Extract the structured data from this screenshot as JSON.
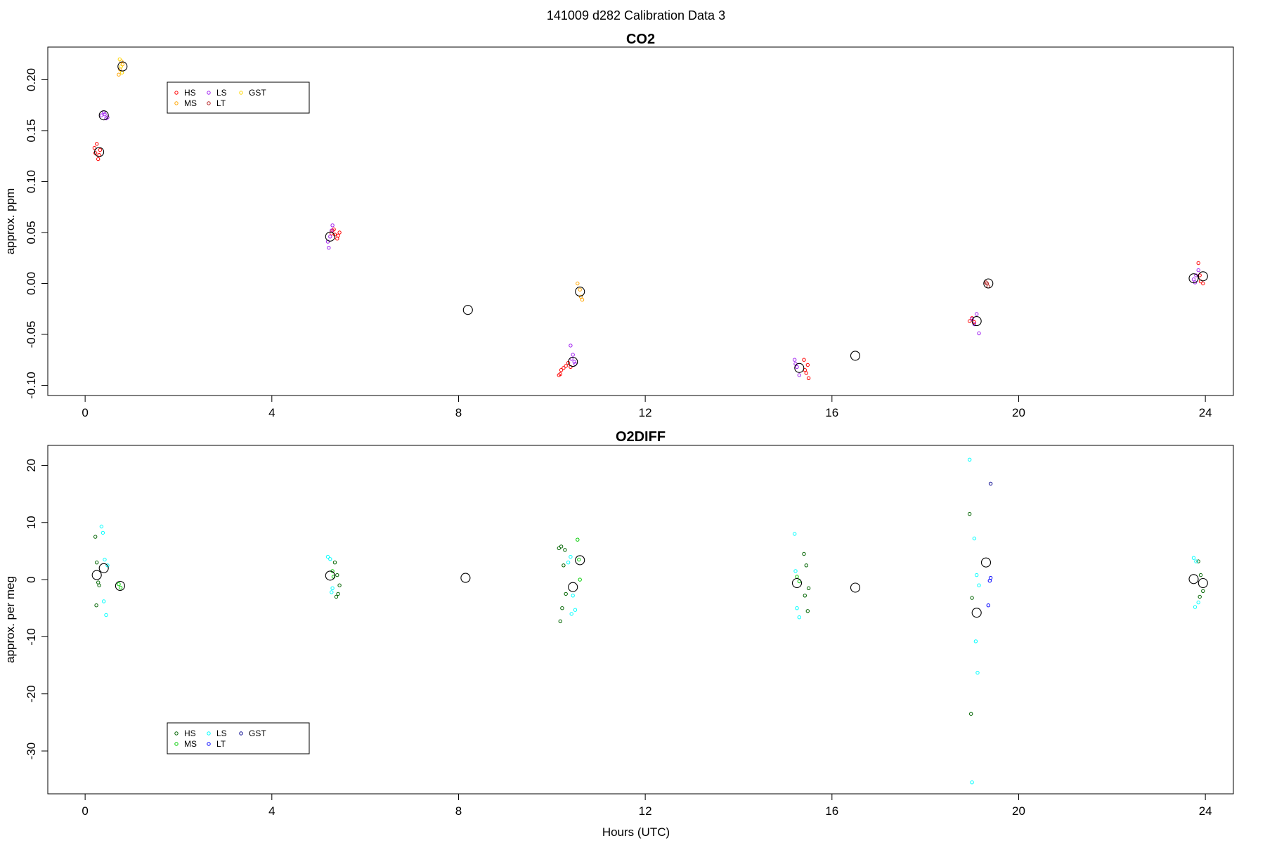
{
  "figure": {
    "title": "141009   d282   Calibration Data 3",
    "xlabel": "Hours (UTC)"
  },
  "chart_data": [
    {
      "type": "scatter",
      "title": "CO2",
      "xlabel": "",
      "ylabel": "approx. ppm",
      "xlim": [
        -0.8,
        24.6
      ],
      "ylim": [
        -0.11,
        0.232
      ],
      "xticks": [
        0,
        4,
        8,
        12,
        16,
        20,
        24
      ],
      "yticks": [
        -0.1,
        -0.05,
        0.0,
        0.05,
        0.1,
        0.15,
        0.2
      ],
      "ytick_labels": [
        "-0.10",
        "-0.05",
        "0.00",
        "0.05",
        "0.10",
        "0.15",
        "0.20"
      ],
      "grid": false,
      "legend": {
        "placement": "top-left",
        "entries": [
          {
            "label": "HS",
            "color": "#ff0000"
          },
          {
            "label": "MS",
            "color": "#ffa500"
          },
          {
            "label": "LS",
            "color": "#a020f0"
          },
          {
            "label": "LT",
            "color": "#b22222"
          },
          {
            "label": "GST",
            "color": "#ffd700"
          }
        ]
      },
      "series": [
        {
          "name": "HS",
          "color": "#ff0000",
          "x": [
            0.2,
            0.25,
            0.3,
            0.28,
            0.32,
            0.22,
            5.3,
            5.35,
            5.4,
            5.45,
            5.33,
            5.42,
            5.28,
            10.15,
            10.2,
            10.3,
            10.25,
            10.35,
            10.18,
            10.4,
            15.4,
            15.45,
            15.5,
            15.42,
            15.48,
            18.95,
            19.0,
            19.05,
            23.85,
            23.9,
            23.95,
            23.88
          ],
          "y": [
            0.133,
            0.137,
            0.126,
            0.122,
            0.131,
            0.128,
            0.052,
            0.048,
            0.044,
            0.05,
            0.053,
            0.047,
            0.049,
            -0.09,
            -0.085,
            -0.081,
            -0.083,
            -0.078,
            -0.089,
            -0.082,
            -0.075,
            -0.088,
            -0.093,
            -0.085,
            -0.08,
            -0.037,
            -0.034,
            -0.038,
            0.02,
            0.002,
            0.0,
            0.008
          ]
        },
        {
          "name": "MS",
          "color": "#ffa500",
          "x": [
            0.72,
            0.75,
            0.78,
            0.8,
            10.55,
            10.6,
            10.62,
            10.65
          ],
          "y": [
            0.205,
            0.21,
            0.218,
            0.215,
            0.0,
            -0.006,
            -0.013,
            -0.016
          ]
        },
        {
          "name": "LS",
          "color": "#a020f0",
          "x": [
            0.35,
            0.4,
            0.45,
            0.42,
            0.48,
            5.2,
            5.25,
            5.3,
            5.22,
            5.28,
            10.4,
            10.45,
            10.5,
            10.42,
            10.48,
            15.2,
            15.25,
            15.3,
            15.22,
            19.0,
            19.05,
            19.1,
            19.15,
            23.75,
            23.8,
            23.85,
            23.78
          ],
          "y": [
            0.165,
            0.168,
            0.162,
            0.166,
            0.163,
            0.041,
            0.046,
            0.057,
            0.035,
            0.052,
            -0.061,
            -0.07,
            -0.079,
            -0.074,
            -0.077,
            -0.075,
            -0.082,
            -0.09,
            -0.079,
            -0.035,
            -0.04,
            -0.03,
            -0.049,
            0.004,
            0.008,
            0.013,
            0.001
          ]
        },
        {
          "name": "LT",
          "color": "#b22222",
          "x": [
            19.3,
            19.35,
            19.32
          ],
          "y": [
            0.001,
            -0.003,
            0.0
          ]
        },
        {
          "name": "GST",
          "color": "#ffd700",
          "x": [
            0.74,
            0.79,
            0.77
          ],
          "y": [
            0.22,
            0.207,
            0.213
          ]
        },
        {
          "name": "",
          "color": "#000000",
          "marker": "large-circle",
          "x": [
            0.3,
            0.4,
            0.8,
            5.25,
            8.2,
            10.45,
            10.6,
            15.3,
            16.5,
            19.1,
            19.35,
            23.75,
            23.95
          ],
          "y": [
            0.129,
            0.165,
            0.213,
            0.046,
            -0.026,
            -0.077,
            -0.008,
            -0.083,
            -0.071,
            -0.037,
            0.0,
            0.005,
            0.007
          ]
        }
      ]
    },
    {
      "type": "scatter",
      "title": "O2DIFF",
      "xlabel": "",
      "ylabel": "approx. per meg",
      "xlim": [
        -0.8,
        24.6
      ],
      "ylim": [
        -37.5,
        23.5
      ],
      "xticks": [
        0,
        4,
        8,
        12,
        16,
        20,
        24
      ],
      "yticks": [
        -30,
        -20,
        -10,
        0,
        10,
        20
      ],
      "ytick_labels": [
        "-30",
        "-20",
        "-10",
        "0",
        "10",
        "20"
      ],
      "grid": false,
      "legend": {
        "placement": "bottom-left",
        "entries": [
          {
            "label": "HS",
            "color": "#006400"
          },
          {
            "label": "MS",
            "color": "#00cc00"
          },
          {
            "label": "LS",
            "color": "#00ffff"
          },
          {
            "label": "LT",
            "color": "#0000ff"
          },
          {
            "label": "GST",
            "color": "#00008b"
          }
        ]
      },
      "series": [
        {
          "name": "HS",
          "color": "#006400",
          "x": [
            0.22,
            0.25,
            0.28,
            0.3,
            0.24,
            5.35,
            5.4,
            5.45,
            5.42,
            5.38,
            10.15,
            10.2,
            10.25,
            10.3,
            10.22,
            10.18,
            10.28,
            15.4,
            15.45,
            15.5,
            15.42,
            15.48,
            18.95,
            19.0,
            18.98,
            23.85,
            23.9,
            23.95,
            23.88
          ],
          "y": [
            7.5,
            3.0,
            -0.5,
            -1.0,
            -4.5,
            3.0,
            0.8,
            -1.0,
            -2.5,
            -3.0,
            5.5,
            5.8,
            2.5,
            -2.5,
            -5.0,
            -7.3,
            5.2,
            4.5,
            2.5,
            -1.5,
            -2.8,
            -5.5,
            11.5,
            -3.2,
            -23.5,
            3.2,
            0.8,
            -2.0,
            -3.0
          ]
        },
        {
          "name": "MS",
          "color": "#00cc00",
          "x": [
            0.72,
            0.76,
            10.55,
            10.6,
            10.58,
            5.3,
            5.32,
            15.3,
            15.25
          ],
          "y": [
            -0.8,
            -1.4,
            7.0,
            0.0,
            3.5,
            1.5,
            0.5,
            -0.3,
            0.5
          ]
        },
        {
          "name": "LS",
          "color": "#00ffff",
          "x": [
            0.35,
            0.38,
            0.42,
            0.45,
            0.4,
            0.48,
            5.2,
            5.25,
            5.3,
            5.28,
            10.4,
            10.45,
            10.5,
            10.35,
            10.42,
            15.2,
            15.25,
            15.3,
            15.22,
            18.95,
            19.05,
            19.1,
            19.15,
            19.08,
            19.12,
            19.0,
            23.75,
            23.8,
            23.85,
            23.78
          ],
          "y": [
            9.3,
            8.2,
            3.5,
            -6.2,
            -3.8,
            2.5,
            4.0,
            3.6,
            -1.5,
            -2.2,
            4.0,
            -2.8,
            -5.3,
            3.0,
            -6.0,
            8.0,
            -5.0,
            -6.6,
            1.5,
            21.0,
            7.2,
            0.8,
            -1.0,
            -10.8,
            -16.3,
            -35.5,
            3.8,
            3.2,
            -4.0,
            -4.8
          ]
        },
        {
          "name": "LT",
          "color": "#0000ff",
          "x": [
            19.35,
            19.4,
            19.38
          ],
          "y": [
            -4.5,
            0.3,
            -0.2
          ]
        },
        {
          "name": "GST",
          "color": "#00008b",
          "x": [
            19.4
          ],
          "y": [
            16.8
          ]
        },
        {
          "name": "",
          "color": "#000000",
          "marker": "large-circle",
          "x": [
            0.25,
            0.4,
            0.75,
            5.25,
            8.15,
            10.45,
            10.6,
            15.25,
            16.5,
            19.1,
            19.3,
            23.75,
            23.95
          ],
          "y": [
            0.8,
            2.0,
            -1.1,
            0.7,
            0.3,
            -1.3,
            3.4,
            -0.6,
            -1.4,
            -5.8,
            3.0,
            0.1,
            -0.6
          ]
        }
      ]
    }
  ]
}
